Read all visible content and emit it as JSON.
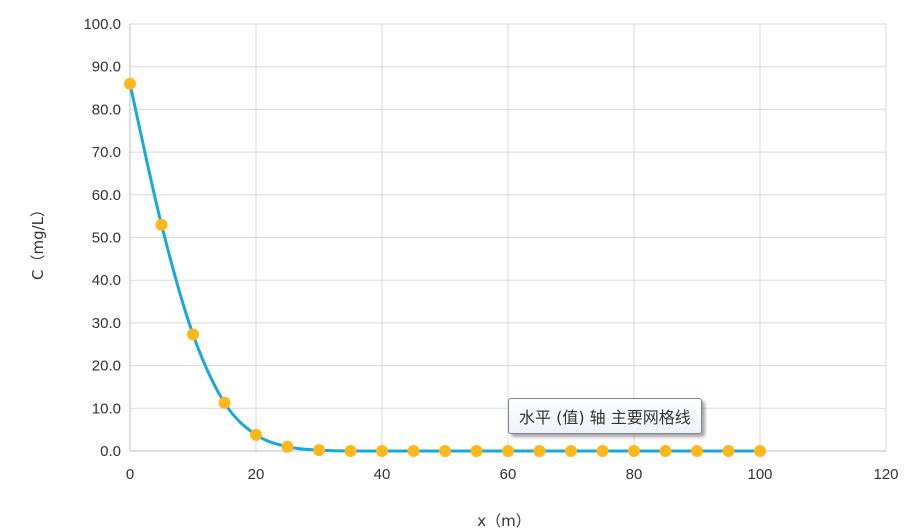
{
  "chart_data": {
    "type": "scatter",
    "xlabel": "x（m）",
    "ylabel": "C（mg/L）",
    "xlim": [
      0,
      120
    ],
    "ylim": [
      0,
      100
    ],
    "x_ticks": [
      "0",
      "20",
      "40",
      "60",
      "80",
      "100",
      "120"
    ],
    "y_ticks": [
      "0.0",
      "10.0",
      "20.0",
      "30.0",
      "40.0",
      "50.0",
      "60.0",
      "70.0",
      "80.0",
      "90.0",
      "100.0"
    ],
    "grid": true,
    "series": [
      {
        "x": [
          0,
          5,
          10,
          15,
          20,
          25,
          30,
          35,
          40,
          45,
          50,
          55,
          60,
          65,
          70,
          75,
          80,
          85,
          90,
          95,
          100
        ],
        "y": [
          86.0,
          53.0,
          27.3,
          11.3,
          3.8,
          1.0,
          0.2,
          0.0,
          0.0,
          0.0,
          0.0,
          0.0,
          0.0,
          0.0,
          0.0,
          0.0,
          0.0,
          0.0,
          0.0,
          0.0,
          0.0
        ],
        "marker_color": "#ffb81c",
        "line_color": "#17a9d9",
        "smooth": true
      }
    ],
    "tooltip": "水平 (值) 轴 主要网格线"
  }
}
